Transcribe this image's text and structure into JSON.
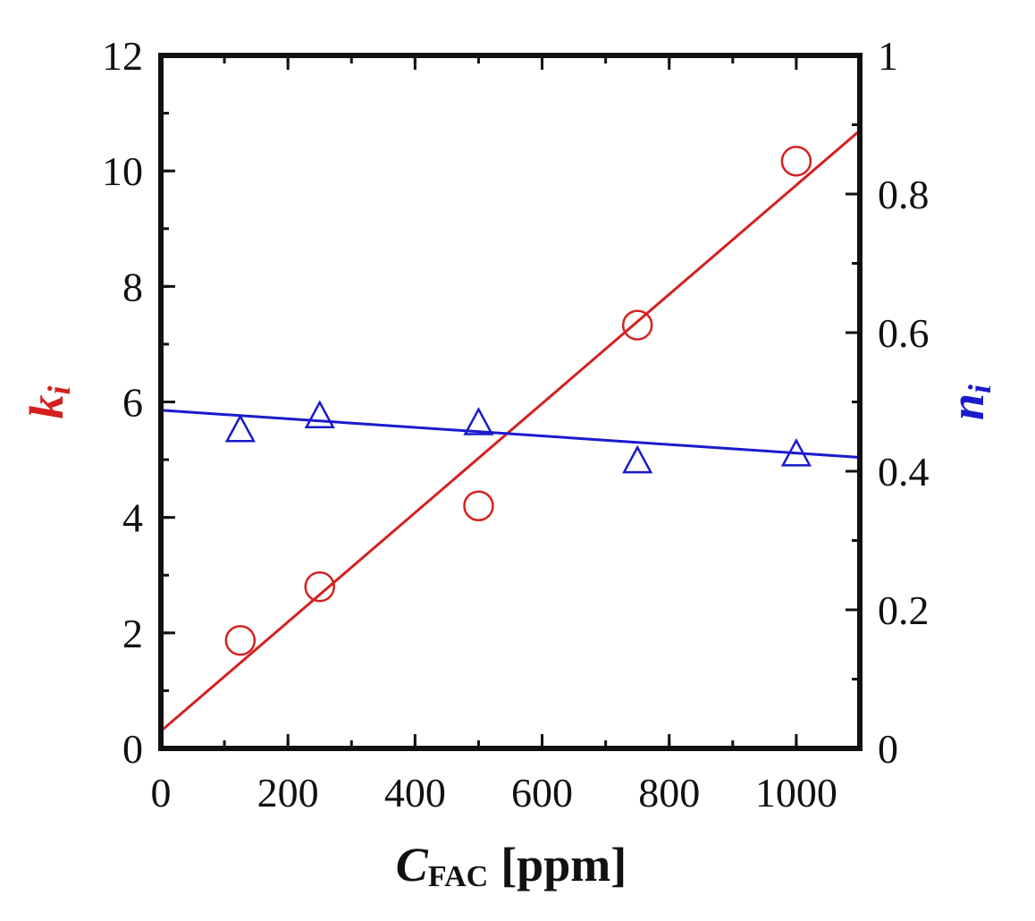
{
  "chart_data": {
    "type": "scatter",
    "title": "",
    "x_axis": {
      "label_main": "C",
      "label_sub": "FAC",
      "label_unit": "[ppm]",
      "range": [
        0,
        1100
      ],
      "ticks": [
        "0",
        "200",
        "400",
        "600",
        "800",
        "1000"
      ],
      "tick_values": [
        0,
        200,
        400,
        600,
        800,
        1000
      ],
      "minor_step": 100
    },
    "y_left_axis": {
      "label_main": "k",
      "label_sub": "i",
      "color": "#d42020",
      "range": [
        0,
        12
      ],
      "ticks": [
        "0",
        "2",
        "4",
        "6",
        "8",
        "10",
        "12"
      ],
      "tick_values": [
        0,
        2,
        4,
        6,
        8,
        10,
        12
      ],
      "minor_step": 1
    },
    "y_right_axis": {
      "label_main": "n",
      "label_sub": "i",
      "color": "#1a1acc",
      "range": [
        0,
        1
      ],
      "ticks": [
        "0",
        "0.2",
        "0.4",
        "0.6",
        "0.8",
        "1"
      ],
      "tick_values": [
        0,
        0.2,
        0.4,
        0.6,
        0.8,
        1
      ],
      "minor_step": 0.1
    },
    "series": [
      {
        "axis": "left",
        "marker": "circle",
        "color": "#d42020",
        "x": [
          125,
          250,
          500,
          750,
          1000
        ],
        "y": [
          1.87,
          2.8,
          4.2,
          7.33,
          10.17
        ],
        "fit_line": {
          "x": [
            0,
            1100
          ],
          "y": [
            0.3,
            10.7
          ]
        }
      },
      {
        "axis": "right",
        "marker": "triangle",
        "color": "#1a1acc",
        "x": [
          125,
          250,
          500,
          750,
          1000
        ],
        "y": [
          0.46,
          0.48,
          0.47,
          0.415,
          0.425
        ],
        "fit_line": {
          "x": [
            0,
            1100
          ],
          "y": [
            0.488,
            0.42
          ]
        }
      }
    ],
    "grid": false,
    "legend": "none"
  }
}
